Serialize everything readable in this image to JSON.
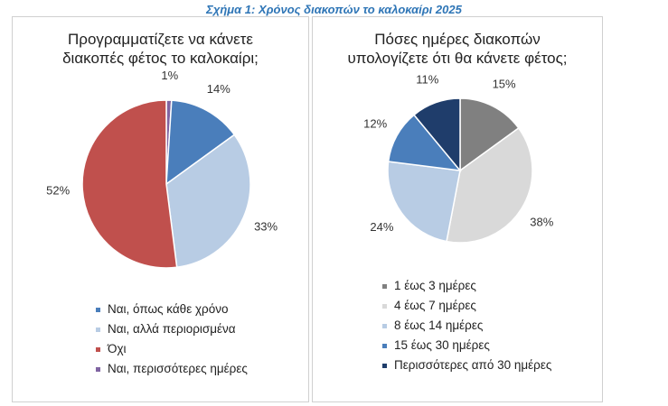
{
  "figure_title": "Σχήμα 1: Χρόνος διακοπών το καλοκαίρι 2025",
  "chart_data": [
    {
      "type": "pie",
      "title_lines": [
        "Προγραμματίζετε να κάνετε",
        "διακοπές φέτος το καλοκαίρι;"
      ],
      "categories": [
        "Ναι, όπως κάθε χρόνο",
        "Ναι, αλλά περιορισμένα",
        "Όχι",
        "Ναι, περισσότερες ημέρες"
      ],
      "values": [
        14,
        33,
        52,
        1
      ],
      "labels": [
        "14%",
        "33%",
        "52%",
        "1%"
      ],
      "colors": [
        "#4a7ebb",
        "#b8cce4",
        "#c0504d",
        "#8064a2"
      ],
      "slice_order": [
        3,
        0,
        1,
        2
      ],
      "legend_position": "bottom"
    },
    {
      "type": "pie",
      "title_lines": [
        "Πόσες ημέρες διακοπών",
        "υπολογίζετε ότι θα κάνετε φέτος;"
      ],
      "categories": [
        "1 έως 3 ημέρες",
        "4 έως 7 ημέρες",
        "8 έως 14 ημέρες",
        "15 έως 30 ημέρες",
        "Περισσότερες από 30 ημέρες"
      ],
      "values": [
        15,
        38,
        24,
        12,
        11
      ],
      "labels": [
        "15%",
        "38%",
        "24%",
        "12%",
        "11%"
      ],
      "colors": [
        "#808080",
        "#d9d9d9",
        "#b8cce4",
        "#4a7ebb",
        "#1f3d6b"
      ],
      "slice_order": [
        0,
        1,
        2,
        3,
        4
      ],
      "legend_position": "bottom"
    }
  ]
}
